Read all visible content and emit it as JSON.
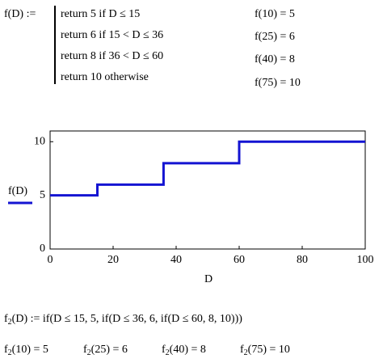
{
  "definition": {
    "head": "f(D) :=",
    "lines": [
      "return 5  if  D ≤ 15",
      "return 6  if  15 < D ≤ 36",
      "return 8  if  36 < D ≤ 60",
      "return 10  otherwise"
    ]
  },
  "evaluations": [
    "f(10) = 5",
    "f(25) = 6",
    "f(40) = 8",
    "f(75) = 10"
  ],
  "chart_data": {
    "type": "line",
    "xlabel": "D",
    "ylabel": "f(D)",
    "xlim": [
      0,
      100
    ],
    "xticks": [
      0,
      20,
      40,
      60,
      80,
      100
    ],
    "ylim": [
      0,
      11
    ],
    "yticks": [
      0,
      5,
      10
    ],
    "series": [
      {
        "color": "#1414d2",
        "x": [
          0,
          15,
          15,
          36,
          36,
          60,
          60,
          100
        ],
        "values": [
          5,
          5,
          6,
          6,
          8,
          8,
          10,
          10
        ]
      }
    ]
  },
  "second_definition": {
    "base": "f",
    "sub": "2",
    "rest": "(D) := if(D ≤ 15, 5, if(D ≤ 36, 6, if(D ≤ 60, 8, 10)))"
  },
  "second_evaluations": [
    {
      "base": "f",
      "sub": "2",
      "rest": "(10) = 5"
    },
    {
      "base": "f",
      "sub": "2",
      "rest": "(25) = 6"
    },
    {
      "base": "f",
      "sub": "2",
      "rest": "(40) = 8"
    },
    {
      "base": "f",
      "sub": "2",
      "rest": "(75) = 10"
    }
  ]
}
